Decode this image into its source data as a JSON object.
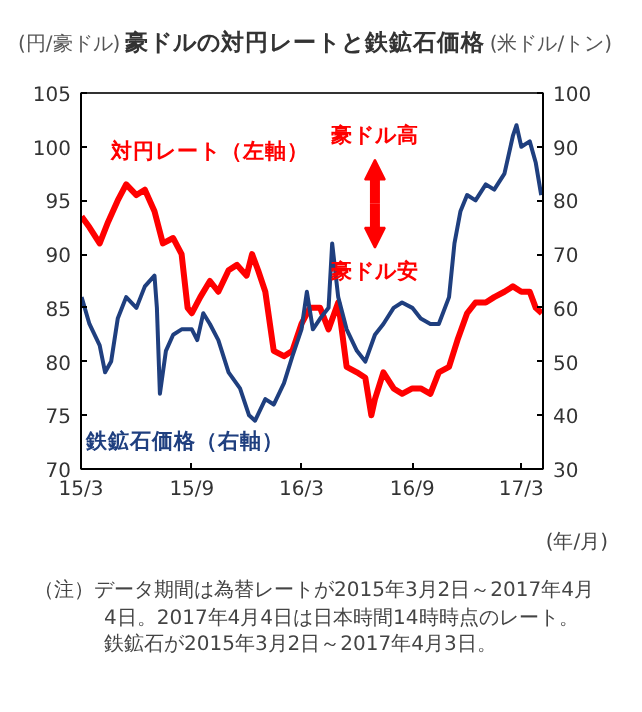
{
  "chart_data": {
    "type": "line",
    "title": "豪ドルの対円レートと鉄鉱石価格",
    "ylabel": "(円/豪ドル)",
    "y2label": "(米ドル/トン)",
    "xlabel": "(年/月)",
    "xlim": [
      "2015-03-01",
      "2017-04-06"
    ],
    "xticks": [
      {
        "value": "2015-03-01",
        "label": "15/3"
      },
      {
        "value": "2015-09-01",
        "label": "15/9"
      },
      {
        "value": "2016-03-01",
        "label": "16/3"
      },
      {
        "value": "2016-09-01",
        "label": "16/9"
      },
      {
        "value": "2017-03-01",
        "label": "17/3"
      }
    ],
    "ylim": [
      70,
      105
    ],
    "yticks": [
      70,
      75,
      80,
      85,
      90,
      95,
      100,
      105
    ],
    "y2lim": [
      30,
      100
    ],
    "y2ticks": [
      30,
      40,
      50,
      60,
      70,
      80,
      90,
      100
    ],
    "grid": false,
    "series": [
      {
        "name": "対円レート（左軸）",
        "color": "#ff0000",
        "x": [
          "2015-03-02",
          "2015-03-15",
          "2015-04-01",
          "2015-04-15",
          "2015-05-01",
          "2015-05-15",
          "2015-06-01",
          "2015-06-15",
          "2015-07-01",
          "2015-07-15",
          "2015-08-01",
          "2015-08-15",
          "2015-08-25",
          "2015-09-01",
          "2015-09-15",
          "2015-10-01",
          "2015-10-15",
          "2015-11-01",
          "2015-11-15",
          "2015-12-01",
          "2015-12-10",
          "2015-12-20",
          "2016-01-01",
          "2016-01-15",
          "2016-02-01",
          "2016-02-15",
          "2016-03-01",
          "2016-03-15",
          "2016-04-01",
          "2016-04-15",
          "2016-05-01",
          "2016-05-15",
          "2016-06-01",
          "2016-06-15",
          "2016-06-25",
          "2016-07-01",
          "2016-07-15",
          "2016-08-01",
          "2016-08-15",
          "2016-09-01",
          "2016-09-15",
          "2016-10-01",
          "2016-10-15",
          "2016-11-01",
          "2016-11-15",
          "2016-12-01",
          "2016-12-15",
          "2017-01-01",
          "2017-01-15",
          "2017-02-01",
          "2017-02-15",
          "2017-03-01",
          "2017-03-15",
          "2017-03-25",
          "2017-04-04"
        ],
        "values": [
          93.5,
          92.5,
          91,
          93,
          95,
          96.5,
          95.5,
          96,
          94,
          91,
          91.5,
          90,
          85,
          84.5,
          86,
          87.5,
          86.5,
          88.5,
          89,
          88,
          90,
          88.5,
          86.5,
          81,
          80.5,
          81,
          83.5,
          85,
          85,
          83,
          85.5,
          79.5,
          79,
          78.5,
          75,
          76.5,
          79,
          77.5,
          77,
          77.5,
          77.5,
          77,
          79,
          79.5,
          82,
          84.5,
          85.5,
          85.5,
          86,
          86.5,
          87,
          86.5,
          86.5,
          85,
          84.5
        ]
      },
      {
        "name": "鉄鉱石価格（右軸）",
        "color": "#1f3f7f",
        "axis": "y2",
        "x": [
          "2015-03-02",
          "2015-03-15",
          "2015-04-01",
          "2015-04-10",
          "2015-04-20",
          "2015-05-01",
          "2015-05-15",
          "2015-06-01",
          "2015-06-15",
          "2015-07-01",
          "2015-07-05",
          "2015-07-10",
          "2015-07-20",
          "2015-08-01",
          "2015-08-15",
          "2015-09-01",
          "2015-09-10",
          "2015-09-20",
          "2015-10-01",
          "2015-10-15",
          "2015-11-01",
          "2015-11-20",
          "2015-12-05",
          "2015-12-15",
          "2016-01-01",
          "2016-01-15",
          "2016-02-01",
          "2016-02-15",
          "2016-03-01",
          "2016-03-10",
          "2016-03-20",
          "2016-04-01",
          "2016-04-15",
          "2016-04-21",
          "2016-05-01",
          "2016-05-15",
          "2016-06-01",
          "2016-06-15",
          "2016-07-01",
          "2016-07-15",
          "2016-08-01",
          "2016-08-15",
          "2016-09-01",
          "2016-09-15",
          "2016-10-01",
          "2016-10-15",
          "2016-11-01",
          "2016-11-10",
          "2016-11-20",
          "2016-12-01",
          "2016-12-15",
          "2017-01-01",
          "2017-01-15",
          "2017-02-01",
          "2017-02-15",
          "2017-02-21",
          "2017-03-01",
          "2017-03-15",
          "2017-03-25",
          "2017-04-03"
        ],
        "values": [
          62,
          57,
          53,
          48,
          50,
          58,
          62,
          60,
          64,
          66,
          60,
          44,
          52,
          55,
          56,
          56,
          54,
          59,
          57,
          54,
          48,
          45,
          40,
          39,
          43,
          42,
          46,
          51,
          56,
          63,
          56,
          58,
          60,
          72,
          62,
          56,
          52,
          50,
          55,
          57,
          60,
          61,
          60,
          58,
          57,
          57,
          62,
          72,
          78,
          81,
          80,
          83,
          82,
          85,
          92,
          94,
          90,
          91,
          87,
          81
        ]
      }
    ],
    "annotations": [
      "豪ドル高",
      "豪ドル安",
      "（注）データ期間は為替レートが2015年3月2日～2017年4月4日。2017年4月4日は日本時間14時時点のレート。鉄鉱石が2015年3月2日～2017年4月3日。"
    ]
  }
}
